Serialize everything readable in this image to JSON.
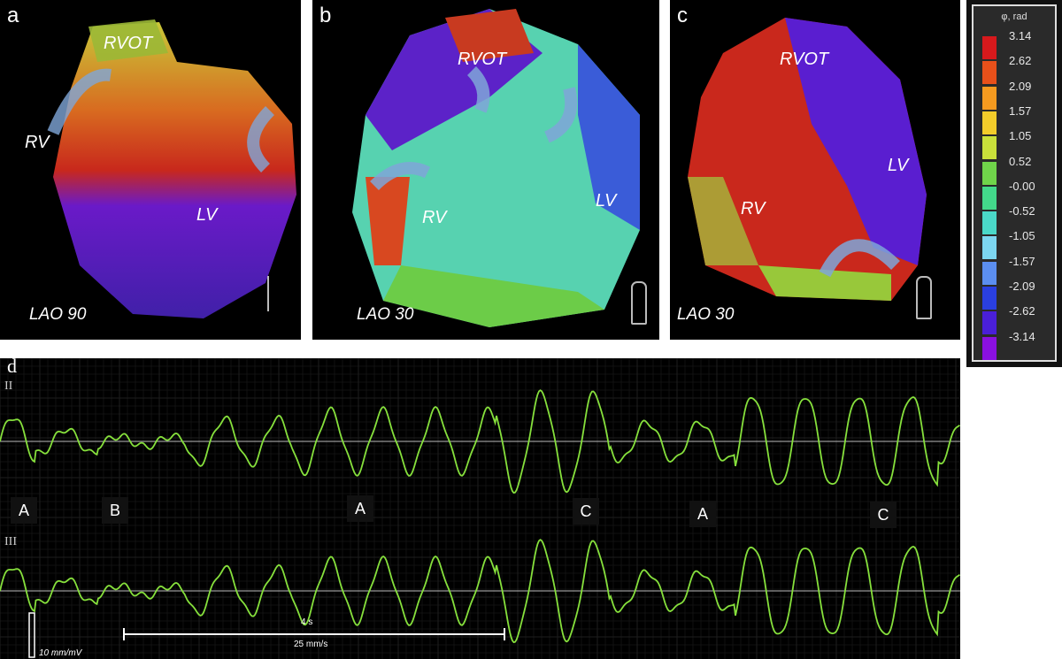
{
  "panels": [
    {
      "label": "a",
      "view": "LAO 90",
      "rv": "RV",
      "rvot": "RVOT",
      "lv": "LV"
    },
    {
      "label": "b",
      "view": "LAO 30",
      "rv": "RV",
      "rvot": "RVOT",
      "lv": "LV"
    },
    {
      "label": "c",
      "view": "LAO 30",
      "rv": "RV",
      "rvot": "RVOT",
      "lv": "LV"
    }
  ],
  "legend": {
    "title": "φ, rad",
    "ticks": [
      "3.14",
      "2.62",
      "2.09",
      "1.57",
      "1.05",
      "0.52",
      "-0.00",
      "-0.52",
      "-1.05",
      "-1.57",
      "-2.09",
      "-2.62",
      "-3.14"
    ],
    "colors": [
      "#d7191c",
      "#e8501a",
      "#f59a1f",
      "#f2cc2a",
      "#c9e03a",
      "#70d44a",
      "#43d88a",
      "#4ad8c8",
      "#7cd6f0",
      "#5b8ef0",
      "#2a3fe0",
      "#4a1fd8",
      "#8a10e0"
    ]
  },
  "ecg": {
    "panel_label": "d",
    "lead_ii": "II",
    "lead_iii": "III",
    "markers": [
      "A",
      "B",
      "A",
      "C",
      "A",
      "C"
    ],
    "scale_time": "4 s",
    "scale_speed": "25 mm/s",
    "scale_gain": "10 mm/mV"
  }
}
